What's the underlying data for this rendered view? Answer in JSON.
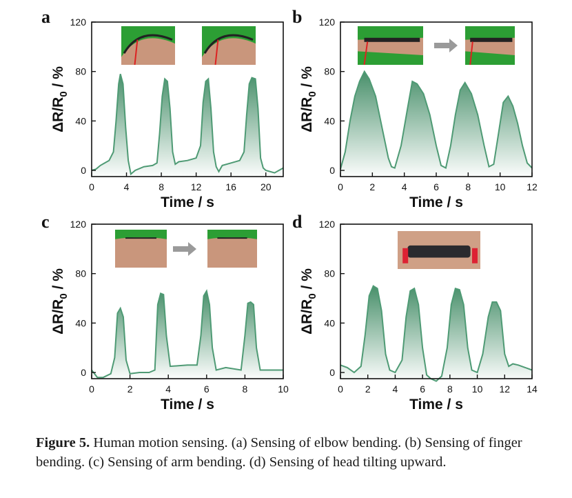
{
  "caption": {
    "label": "Figure 5.",
    "text": "Human motion sensing. (a) Sensing of elbow bending. (b) Sensing of finger bending. (c) Sensing of arm bending. (d) Sensing of head tilting upward."
  },
  "colors": {
    "line": "#4e9a74",
    "fill_top": "#3f8a63",
    "photo_bg": "#2c9e34",
    "skin": "#c9967c",
    "arrow": "#9a9a9a"
  },
  "chart_data": [
    {
      "panel": "a",
      "type": "area",
      "xlabel": "Time / s",
      "ylabel": "ΔR/R0 / %",
      "xlim": [
        0,
        22
      ],
      "ylim": [
        -5,
        120
      ],
      "xticks": [
        0,
        4,
        8,
        12,
        16,
        20
      ],
      "yticks": [
        0,
        40,
        80,
        120
      ],
      "x": [
        0,
        0.5,
        1,
        1.5,
        2,
        2.5,
        2.8,
        3.1,
        3.3,
        3.6,
        3.9,
        4.2,
        4.5,
        5,
        6,
        7,
        7.5,
        7.8,
        8.1,
        8.4,
        8.7,
        9,
        9.3,
        9.6,
        10,
        11,
        12,
        12.5,
        12.8,
        13.1,
        13.4,
        13.7,
        14,
        14.3,
        14.6,
        15,
        16,
        17,
        17.5,
        17.8,
        18.1,
        18.4,
        18.8,
        19.1,
        19.4,
        19.7,
        20,
        21,
        22
      ],
      "y": [
        0,
        1,
        4,
        6,
        8,
        15,
        40,
        70,
        78,
        70,
        35,
        8,
        -3,
        0,
        3,
        4,
        6,
        30,
        60,
        74,
        72,
        50,
        15,
        5,
        7,
        8,
        10,
        20,
        55,
        72,
        74,
        50,
        15,
        3,
        -1,
        4,
        6,
        8,
        15,
        45,
        70,
        75,
        74,
        50,
        10,
        2,
        0,
        -2,
        2
      ],
      "photos": 2,
      "arrow": false
    },
    {
      "panel": "b",
      "type": "area",
      "xlabel": "Time / s",
      "ylabel": "ΔR/R0 / %",
      "xlim": [
        0,
        12
      ],
      "ylim": [
        -5,
        120
      ],
      "xticks": [
        0,
        2,
        4,
        6,
        8,
        10,
        12
      ],
      "yticks": [
        0,
        40,
        80,
        120
      ],
      "x": [
        0,
        0.3,
        0.6,
        0.9,
        1.2,
        1.5,
        1.8,
        2.2,
        2.6,
        3,
        3.2,
        3.4,
        3.8,
        4.2,
        4.5,
        4.8,
        5.2,
        5.6,
        6,
        6.3,
        6.6,
        6.9,
        7.2,
        7.5,
        7.8,
        8.2,
        8.6,
        9,
        9.3,
        9.6,
        9.9,
        10.2,
        10.5,
        10.8,
        11.1,
        11.4,
        11.7,
        12
      ],
      "y": [
        1,
        15,
        40,
        60,
        72,
        80,
        74,
        60,
        35,
        10,
        3,
        2,
        20,
        50,
        72,
        70,
        62,
        45,
        20,
        4,
        2,
        20,
        45,
        65,
        71,
        62,
        45,
        20,
        3,
        5,
        30,
        55,
        60,
        52,
        38,
        20,
        6,
        2
      ],
      "photos": 2,
      "arrow": true
    },
    {
      "panel": "c",
      "type": "area",
      "xlabel": "Time / s",
      "ylabel": "ΔR/R0 / %",
      "xlim": [
        0,
        10
      ],
      "ylim": [
        -5,
        120
      ],
      "xticks": [
        0,
        2,
        4,
        6,
        8,
        10
      ],
      "yticks": [
        0,
        40,
        80,
        120
      ],
      "x": [
        0,
        0.3,
        0.6,
        1,
        1.2,
        1.35,
        1.5,
        1.65,
        1.8,
        2,
        2.5,
        3,
        3.3,
        3.45,
        3.6,
        3.75,
        3.9,
        4.1,
        5,
        5.5,
        5.7,
        5.85,
        6,
        6.15,
        6.3,
        6.5,
        7,
        7.8,
        8,
        8.15,
        8.3,
        8.45,
        8.6,
        8.8,
        9.5,
        10
      ],
      "y": [
        2,
        -4,
        -4,
        -1,
        12,
        48,
        52,
        45,
        10,
        -1,
        0,
        0,
        2,
        55,
        64,
        63,
        30,
        5,
        6,
        6,
        30,
        62,
        66,
        55,
        20,
        2,
        4,
        2,
        30,
        56,
        57,
        55,
        20,
        2,
        2,
        2
      ],
      "photos": 2,
      "arrow": true
    },
    {
      "panel": "d",
      "type": "area",
      "xlabel": "Time / s",
      "ylabel": "ΔR/R0 / %",
      "xlim": [
        0,
        14
      ],
      "ylim": [
        -5,
        120
      ],
      "xticks": [
        0,
        2,
        4,
        6,
        8,
        10,
        12,
        14
      ],
      "yticks": [
        0,
        40,
        80,
        120
      ],
      "x": [
        0,
        0.5,
        1,
        1.5,
        1.8,
        2.1,
        2.4,
        2.7,
        3,
        3.3,
        3.6,
        4,
        4.5,
        4.8,
        5.1,
        5.4,
        5.7,
        6,
        6.3,
        6.6,
        7,
        7.4,
        7.8,
        8.1,
        8.4,
        8.7,
        9,
        9.3,
        9.6,
        10,
        10.4,
        10.8,
        11.1,
        11.4,
        11.7,
        12,
        12.3,
        12.6,
        13,
        13.5,
        14
      ],
      "y": [
        6,
        4,
        0,
        5,
        30,
        62,
        70,
        68,
        50,
        15,
        2,
        0,
        10,
        45,
        66,
        68,
        55,
        20,
        -2,
        -5,
        -7,
        -3,
        20,
        55,
        68,
        67,
        55,
        20,
        2,
        0,
        15,
        45,
        57,
        57,
        50,
        15,
        5,
        7,
        6,
        4,
        2
      ],
      "photos": 1,
      "arrow": false
    }
  ]
}
